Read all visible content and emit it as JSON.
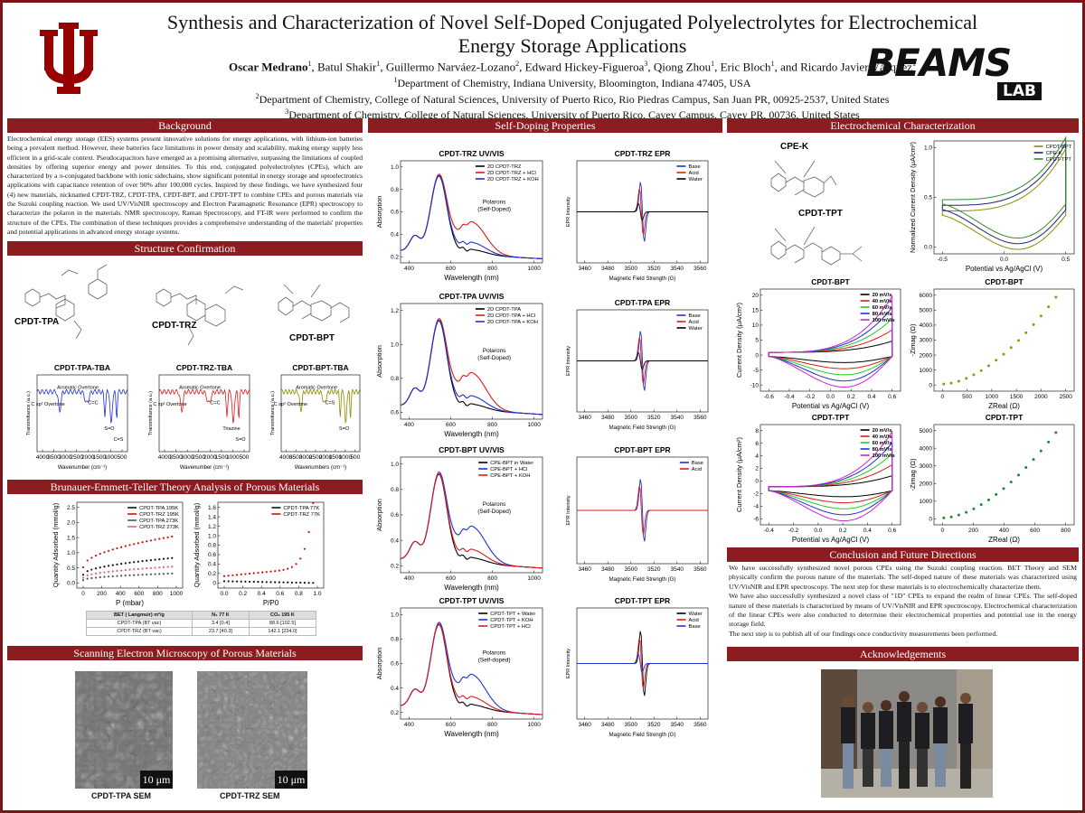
{
  "header": {
    "title": "Synthesis and Characterization of Novel Self-Doped Conjugated Polyelectrolytes for Electrochemical Energy Storage Applications",
    "authors": [
      {
        "name": "Oscar Medrano",
        "sup": "1",
        "sep": ", "
      },
      {
        "name": "Batul Shakir",
        "sup": "1",
        "sep": ", "
      },
      {
        "name": "Guillermo Narváez-Lozano",
        "sup": "2",
        "sep": ", "
      },
      {
        "name": "Edward Hickey-Figueroa",
        "sup": "3",
        "sep": ", "
      },
      {
        "name": "Qiong Zhou",
        "sup": "1",
        "sep": ", "
      },
      {
        "name": "Eric Bloch",
        "sup": "1",
        "sep": ", and "
      },
      {
        "name": "Ricardo Javier Vázquez",
        "sup": "1",
        "sep": ""
      }
    ],
    "affiliations": [
      {
        "sup": "1",
        "text": "Department of Chemistry, Indiana University, Bloomington, Indiana 47405, USA"
      },
      {
        "sup": "2",
        "text": "Department of Chemistry, College of Natural Sciences, University of Puerto Rico, Rio Piedras Campus, San Juan PR, 00925-2537, United States"
      },
      {
        "sup": "3",
        "text": "Department of Chemistry, College of Natural Sciences, University of Puerto Rico, Cayey Campus, Cayey PR, 00736, United States"
      }
    ],
    "logo": {
      "main": "BEAMS",
      "sub": "LAB"
    }
  },
  "background": {
    "heading": "Background",
    "text": "Electrochemical energy storage (EES) systems present innovative solutions for energy applications, with lithium-ion batteries being a prevalent method. However, these batteries face limitations in power density and scalability, making energy supply less efficient in a grid-scale context. Pseudocapacitors have emerged as a promising alternative, surpassing the limitations of coupled densities by offering superior energy and power densities. To this end, conjugated polyelectrolytes (CPEs), which are characterized by a π-conjugated backbone with ionic sidechains, show significant potential in energy storage and optoelectronics applications with capacitance retention of over 90% after 100,000 cycles. Inspired by these findings, we have synthesized four (4) new materials, nicknamed CPDT-TRZ, CPDT-TPA, CPDT-BPT, and CPDT-TPT to combine CPEs and porous materials via the Suzuki coupling reaction. We used UV/VisNIR spectroscopy and Electron Paramagnetic Resonance (EPR) spectroscopy to characterize the polaron in the materials. NMR spectroscopy, Raman Spectroscopy, and FT-IR were performed to confirm the structure of the CPEs. The combination of these techniques provides a comprehensive understanding of the materials' properties and potential applications in advanced energy storage systems."
  },
  "structure": {
    "heading": "Structure Confirmation",
    "compounds": [
      "CPDT-TPA",
      "CPDT-TRZ",
      "CPDT-BPT"
    ],
    "ftir": [
      {
        "title": "CPDT-TPA-TBA",
        "xlabel": "Wavenumber (cm⁻¹)",
        "ylabel": "Transmittance (a.u.)",
        "xticks": [
          4000,
          3500,
          3000,
          2500,
          2000,
          1500,
          1000,
          500
        ],
        "annotations": [
          "C sp² Overtone",
          "Aromatic Overtone",
          "C=C",
          "S=O",
          "C=S"
        ]
      },
      {
        "title": "CPDT-TRZ-TBA",
        "xlabel": "Wavenumber (cm⁻¹)",
        "ylabel": "Transmittance (a.u.)",
        "xticks": [
          4000,
          3500,
          3000,
          2500,
          2000,
          1500,
          1000,
          500
        ],
        "annotations": [
          "C sp² Overtone",
          "Aromatic Overtone",
          "C=C",
          "Triazine",
          "S=O"
        ]
      },
      {
        "title": "CPDT-BPT-TBA",
        "xlabel": "Wavenumbers (cm⁻¹)",
        "ylabel": "Transmittance (a.u.)",
        "xticks": [
          4000,
          3500,
          3000,
          2500,
          2000,
          1500,
          1000,
          500
        ],
        "annotations": [
          "C sp² Overtone",
          "Aromatic Overtone",
          "C=S",
          "S=O"
        ]
      }
    ]
  },
  "bet": {
    "heading": "Brunauer-Emmett-Teller Theory Analysis of Porous Materials",
    "plots": [
      {
        "xlabel": "P (mbar)",
        "ylabel": "Quantity Adsorbed (mmol/g)",
        "xticks": [
          0,
          200,
          400,
          600,
          800,
          1000
        ],
        "yticks": [
          {
            "value": 0,
            "label": "0.0"
          },
          0.5,
          {
            "value": 1,
            "label": "1.0"
          },
          1.5,
          {
            "value": 2,
            "label": "2.0"
          },
          2.5
        ],
        "legend": [
          {
            "name": "CPDT-TPA 195K",
            "color": "#111111"
          },
          {
            "name": "CPDT-TRZ 195K",
            "color": "#d01010"
          },
          {
            "name": "CPDT-TPA 273K",
            "color": "#555555"
          },
          {
            "name": "CPDT-TRZ 273K",
            "color": "#ee6060"
          }
        ]
      },
      {
        "xlabel": "P/P0",
        "ylabel": "Quantity Adsorbed (mmol/g)",
        "xticks": [
          {
            "value": 0,
            "label": "0.0"
          },
          0.2,
          0.4,
          0.6,
          0.8,
          {
            "value": 1,
            "label": "1.0"
          }
        ],
        "yticks": [
          0,
          0.2,
          0.4,
          0.6,
          0.8,
          {
            "value": 1,
            "label": "1.0"
          },
          1.2,
          1.4,
          1.6
        ],
        "legend": [
          {
            "name": "CPDT-TPA 77K",
            "color": "#111111"
          },
          {
            "name": "CPDT-TRZ 77K",
            "color": "#d01010"
          }
        ]
      }
    ],
    "table": {
      "header": [
        "BET ( Langmuir) m²/g",
        "N₂ 77 K",
        "CO₂ 195 K"
      ],
      "rows": [
        [
          "CPDT-TPA (BT vac)",
          "3.4 [0.4]",
          "88.6 [102.5]"
        ],
        [
          "CPDT-TRZ (BT vac)",
          "23.7 [40.3]",
          "142.1 [234.0]"
        ]
      ]
    }
  },
  "sem": {
    "heading": "Scanning Electron Microscopy of Porous Materials",
    "images": [
      {
        "scale": "10 μm",
        "caption": "CPDT-TPA SEM"
      },
      {
        "scale": "10 μm",
        "caption": "CPDT-TRZ SEM"
      }
    ]
  },
  "self_doping": {
    "heading": "Self-Doping Properties",
    "panels": [
      {
        "title": "CPDT-TRZ UV/VIS",
        "xlabel": "Wavelength (nm)",
        "ylabel": "Absorption",
        "xticks": [
          400,
          600,
          800,
          1000
        ],
        "yticks": [
          0.2,
          0.4,
          0.6,
          0.8,
          {
            "value": 1,
            "label": "1.0"
          }
        ],
        "legend": [
          {
            "name": "2D CPDT-TRZ",
            "color": "#000000"
          },
          {
            "name": "2D CPDT-TRZ + HCl",
            "color": "#e0191b"
          },
          {
            "name": "2D CPDT-TRZ + KOH",
            "color": "#1f2fd6"
          }
        ],
        "annotation": [
          "Polarons",
          "(Self-Doped)"
        ]
      },
      {
        "title": "CPDT-TRZ EPR",
        "xlabel": "Magnetic Field Strength (G)",
        "ylabel": "EPR Intensity",
        "xticks": [
          3460,
          3480,
          3500,
          3520,
          3540,
          3560
        ],
        "legend": [
          {
            "name": "Base",
            "color": "#1f2fd6"
          },
          {
            "name": "Acid",
            "color": "#e0191b"
          },
          {
            "name": "Water",
            "color": "#000000"
          }
        ]
      },
      {
        "title": "CPDT-TPA UV/VIS",
        "xlabel": "Wavelength (nm)",
        "ylabel": "Absorption",
        "xticks": [
          400,
          600,
          800,
          1000
        ],
        "yticks": [
          0.6,
          0.8,
          {
            "value": 1,
            "label": "1.0"
          },
          1.2
        ],
        "legend": [
          {
            "name": "2D CPDT-TPA",
            "color": "#000000"
          },
          {
            "name": "2D CPDT-TPA + HCl",
            "color": "#e0191b"
          },
          {
            "name": "2D CPDT-TPA + KOH",
            "color": "#1f2fd6"
          }
        ],
        "annotation": [
          "Polarons",
          "(Self-Doped)"
        ]
      },
      {
        "title": "CPDT-TPA EPR",
        "xlabel": "Magnetic Field Strength (G)",
        "ylabel": "EPR Intensity",
        "xticks": [
          3460,
          3480,
          3500,
          3520,
          3540,
          3560
        ],
        "legend": [
          {
            "name": "Base",
            "color": "#1f2fd6"
          },
          {
            "name": "Acid",
            "color": "#e0191b"
          },
          {
            "name": "Water",
            "color": "#000000"
          }
        ]
      },
      {
        "title": "CPDT-BPT UV/VIS",
        "xlabel": "Wavelength (nm)",
        "ylabel": "Absorption",
        "xticks": [
          400,
          600,
          800,
          1000
        ],
        "yticks": [
          0.2,
          0.4,
          0.6,
          0.8,
          {
            "value": 1,
            "label": "1.0"
          }
        ],
        "legend": [
          {
            "name": "CPE-BPT in Water",
            "color": "#000000"
          },
          {
            "name": "CPE-BPT + HCl",
            "color": "#1f2fd6"
          },
          {
            "name": "CPE-BPT + KOH",
            "color": "#e0191b"
          }
        ],
        "annotation": [
          "Polarons",
          "(Self-Doped)"
        ]
      },
      {
        "title": "CPDT-BPT EPR",
        "xlabel": "Magnetic Field Strength (G)",
        "ylabel": "EPR Intensity",
        "xticks": [
          3460,
          3480,
          3500,
          3520,
          3540,
          3560
        ],
        "legend": [
          {
            "name": "Base",
            "color": "#1f2fd6"
          },
          {
            "name": "Acid",
            "color": "#e0191b"
          }
        ]
      },
      {
        "title": "CPDT-TPT UV/VIS",
        "xlabel": "Wavelength (nm)",
        "ylabel": "Absorption",
        "xticks": [
          400,
          600,
          800,
          1000
        ],
        "yticks": [
          0.2,
          0.4,
          0.6,
          0.8,
          {
            "value": 1,
            "label": "1.0"
          }
        ],
        "legend": [
          {
            "name": "CPDT-TPT + Water",
            "color": "#000000"
          },
          {
            "name": "CPDT-TPT + KOH",
            "color": "#1f2fd6"
          },
          {
            "name": "CPDT-TPT + HCl",
            "color": "#e0191b"
          }
        ],
        "annotation": [
          "Polarons",
          "(Self-doped)"
        ]
      },
      {
        "title": "CPDT-TPT EPR",
        "xlabel": "Magnetic Field Strength (G)",
        "ylabel": "EPR Intensity",
        "xticks": [
          3460,
          3480,
          3500,
          3520,
          3540,
          3560
        ],
        "legend": [
          {
            "name": "Water",
            "color": "#000000"
          },
          {
            "name": "Acid",
            "color": "#e0191b"
          },
          {
            "name": "Base",
            "color": "#1f2fd6"
          }
        ]
      }
    ]
  },
  "electrochem": {
    "heading": "Electrochemical Characterization",
    "compounds": [
      "CPE-K",
      "CPDT-TPT"
    ],
    "panels": [
      {
        "xlabel": "Potential vs Ag/AgCl (V)",
        "ylabel": "Normalized Current Density (μA/cm²)",
        "xticks": [
          -0.5,
          {
            "value": 0,
            "label": "0.0"
          },
          0.5
        ],
        "yticks": [
          {
            "value": 0,
            "label": "0.0"
          },
          0.5,
          {
            "value": 1,
            "label": "1.0"
          }
        ],
        "legend": [
          {
            "name": "CPDT-BPT",
            "color": "#8b8b00"
          },
          {
            "name": "CPE-K",
            "color": "#1a237e"
          },
          {
            "name": "CPDT-TPT",
            "color": "#2e8b2e"
          }
        ]
      },
      {
        "title": "CPDT-BPT",
        "xlabel": "Potential vs Ag/AgCl (V)",
        "ylabel": "Current Density (μA/cm²)",
        "xticks": [
          -0.6,
          -0.4,
          -0.2,
          {
            "value": 0,
            "label": "0.0"
          },
          0.2,
          0.4,
          0.6
        ],
        "yticks": [
          -10,
          -5,
          0,
          5,
          10,
          15,
          20
        ],
        "legend": [
          {
            "name": "20 mV/s",
            "color": "#000000"
          },
          {
            "name": "40 mV/s",
            "color": "#e0191b"
          },
          {
            "name": "60 mV/s",
            "color": "#22cc22"
          },
          {
            "name": "80 mV/s",
            "color": "#1f2fd6"
          },
          {
            "name": "100 mV/s",
            "color": "#cc22cc"
          }
        ]
      },
      {
        "title": "CPDT-BPT",
        "color": "#8a9a10",
        "xlabel": "ZReal (Ω)",
        "ylabel": "-Zimag (Ω)",
        "xticks": [
          0,
          500,
          1000,
          1500,
          2000,
          2500
        ],
        "yticks": [
          0,
          1000,
          2000,
          3000,
          4000,
          5000,
          6000
        ]
      },
      {
        "title": "CPDT-TPT",
        "xlabel": "Potential vs Ag/AgCl (V)",
        "ylabel": "Current Density (μA/cm²)",
        "xticks": [
          -0.4,
          -0.2,
          {
            "value": 0,
            "label": "0.0"
          },
          0.2,
          0.4,
          0.6
        ],
        "yticks": [
          -6,
          -4,
          -2,
          0,
          2,
          4,
          6,
          8
        ],
        "legend": [
          {
            "name": "20 mV/s",
            "color": "#000000"
          },
          {
            "name": "40 mV/s",
            "color": "#e0191b"
          },
          {
            "name": "60 mV/s",
            "color": "#22cc22"
          },
          {
            "name": "80 mV/s",
            "color": "#1f2fd6"
          },
          {
            "name": "100 mV/s",
            "color": "#cc22cc"
          }
        ]
      },
      {
        "title": "CPDT-TPT",
        "color": "#1a8a3a",
        "xlabel": "ZReal (Ω)",
        "ylabel": "-Zimag (Ω)",
        "xticks": [
          0,
          200,
          400,
          600,
          800
        ],
        "yticks": [
          0,
          1000,
          2000,
          3000,
          4000,
          5000
        ]
      }
    ]
  },
  "conclusion": {
    "heading": "Conclusion and Future Directions",
    "paragraphs": [
      "We have successfully synthesized novel porous CPEs using the Suzuki coupling reaction. BET Theory and SEM physically confirm the porous nature of the materials. The self-doped nature of these materials was characterized using UV/VisNIR and EPR spectroscopy. The next step for these materials is to electrochemically characterize them.",
      "We have also successfully synthesized a novel class of \"1D\" CPEs to expand the realm of linear CPEs. The self-doped nature of these materials is characterized by means of UV/VisNIR and EPR spectroscopy. Electrochemical characterization of the linear CPEs were also conducted to determine their electrochemical properties and potential use in the energy storage field.",
      "The next step is to publish all of our findings once conductivity measurements been performed."
    ]
  },
  "acknowledgements": {
    "heading": "Acknowledgements"
  }
}
